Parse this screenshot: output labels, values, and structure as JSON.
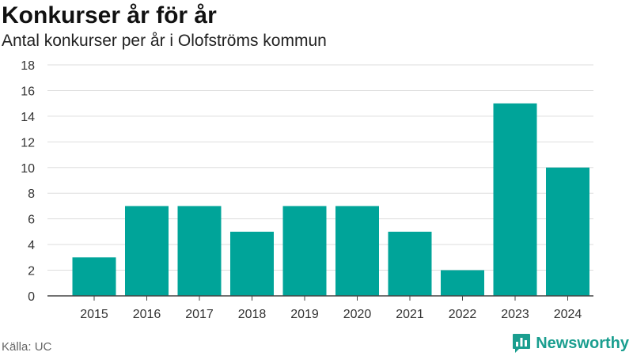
{
  "header": {
    "title": "Konkurser år för år",
    "subtitle": "Antal konkurser per år i Olofströms kommun"
  },
  "footer": {
    "source": "Källa: UC",
    "brand": "Newsworthy"
  },
  "colors": {
    "bar": "#00a499",
    "grid": "#dddddd",
    "axis": "#444444",
    "brand": "#1a9e8f"
  },
  "icons": {
    "brand_logo": "speech-bubble-bar-chart-icon"
  },
  "chart_data": {
    "type": "bar",
    "title": "Konkurser år för år",
    "subtitle": "Antal konkurser per år i Olofströms kommun",
    "xlabel": "",
    "ylabel": "",
    "categories": [
      "2015",
      "2016",
      "2017",
      "2018",
      "2019",
      "2020",
      "2021",
      "2022",
      "2023",
      "2024"
    ],
    "values": [
      3,
      7,
      7,
      5,
      7,
      7,
      5,
      2,
      15,
      10
    ],
    "ylim": [
      0,
      18
    ],
    "yticks": [
      0,
      2,
      4,
      6,
      8,
      10,
      12,
      14,
      16,
      18
    ],
    "grid": true,
    "legend": "none"
  }
}
